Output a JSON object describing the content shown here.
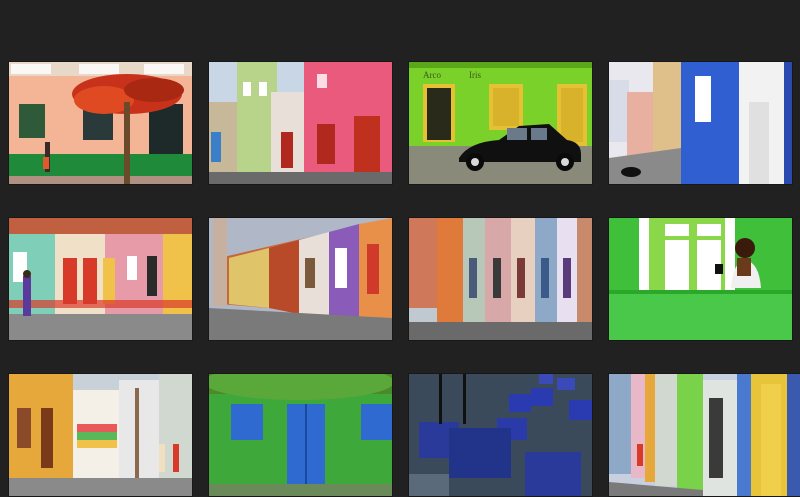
{
  "gallery": {
    "background": "#212121",
    "thumbnails": [
      {
        "id": 1,
        "subject": "orange-house-with-red-flowering-tree",
        "palette": [
          "#f0a98a",
          "#1e8a3a",
          "#d93a1e"
        ]
      },
      {
        "id": 2,
        "subject": "pink-and-green-houses-street",
        "palette": [
          "#e85a78",
          "#9bc46a",
          "#2f8fc8"
        ]
      },
      {
        "id": 3,
        "subject": "green-wall-with-vintage-black-car",
        "palette": [
          "#7ad12a",
          "#e4c233",
          "#111111"
        ]
      },
      {
        "id": 4,
        "subject": "blue-and-white-houses-street",
        "palette": [
          "#2f5fd0",
          "#f4f4f4",
          "#e0b87a"
        ]
      },
      {
        "id": 5,
        "subject": "pastel-houses-row-with-person-walking",
        "palette": [
          "#7fcfb8",
          "#e79aa7",
          "#f0c24a"
        ]
      },
      {
        "id": 6,
        "subject": "colorful-colonial-street-perspective",
        "palette": [
          "#c46a3a",
          "#8a5bb8",
          "#e0c46a"
        ]
      },
      {
        "id": 7,
        "subject": "narrow-street-colorful-facades",
        "palette": [
          "#d08c6a",
          "#8ea8c8",
          "#e07a3a"
        ]
      },
      {
        "id": 8,
        "subject": "green-wall-window-with-girl",
        "palette": [
          "#3fbf3a",
          "#ffffff",
          "#4a2a1a"
        ]
      },
      {
        "id": 9,
        "subject": "yellow-and-striped-houses-street",
        "palette": [
          "#e6a83a",
          "#e85a5a",
          "#5ab85a"
        ]
      },
      {
        "id": 10,
        "subject": "green-wall-with-blue-door",
        "palette": [
          "#3fa83a",
          "#2f6ad0",
          "#4a8a2a"
        ]
      },
      {
        "id": 11,
        "subject": "blue-cubes-on-cobblestone",
        "palette": [
          "#2a3a9a",
          "#3a4a5a",
          "#5a6a8a"
        ]
      },
      {
        "id": 12,
        "subject": "yellow-doors-street-perspective",
        "palette": [
          "#e8c43a",
          "#4a7ad0",
          "#7ad14a"
        ]
      }
    ]
  }
}
